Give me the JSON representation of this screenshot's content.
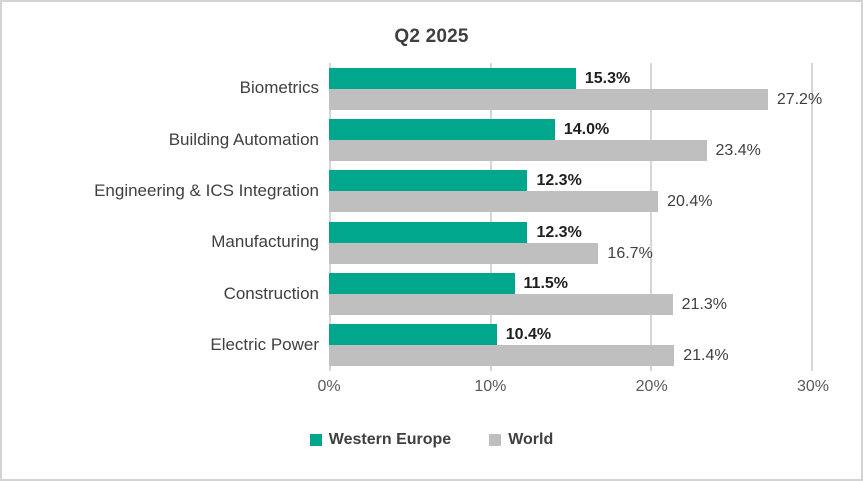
{
  "title": "Q2 2025",
  "chart_data": {
    "type": "bar",
    "orientation": "horizontal",
    "title": "Q2 2025",
    "categories": [
      "Biometrics",
      "Building Automation",
      "Engineering & ICS Integration",
      "Manufacturing",
      "Construction",
      "Electric Power"
    ],
    "series": [
      {
        "name": "Western Europe",
        "color": "#00A78C",
        "values": [
          15.3,
          14.0,
          12.3,
          12.3,
          11.5,
          10.4
        ],
        "labels": [
          "15.3%",
          "14.0%",
          "12.3%",
          "12.3%",
          "11.5%",
          "10.4%"
        ]
      },
      {
        "name": "World",
        "color": "#BFBFBF",
        "values": [
          27.2,
          23.4,
          20.4,
          16.7,
          21.3,
          21.4
        ],
        "labels": [
          "27.2%",
          "23.4%",
          "20.4%",
          "16.7%",
          "21.3%",
          "21.4%"
        ]
      }
    ],
    "xlabel": "",
    "ylabel": "",
    "xlim": [
      0,
      30
    ],
    "xticks": [
      "0%",
      "10%",
      "20%",
      "30%"
    ],
    "grid": true,
    "legend_position": "bottom"
  },
  "colors": {
    "western_europe": "#00A78C",
    "world": "#BFBFBF",
    "gridline": "#D6D6D6",
    "frame_border": "#D4D2D2",
    "title_text": "#3F3F3F",
    "category_text": "#404040",
    "tick_text": "#595959",
    "value_bold_text": "#1F1F1F",
    "value_regular_text": "#404040"
  }
}
